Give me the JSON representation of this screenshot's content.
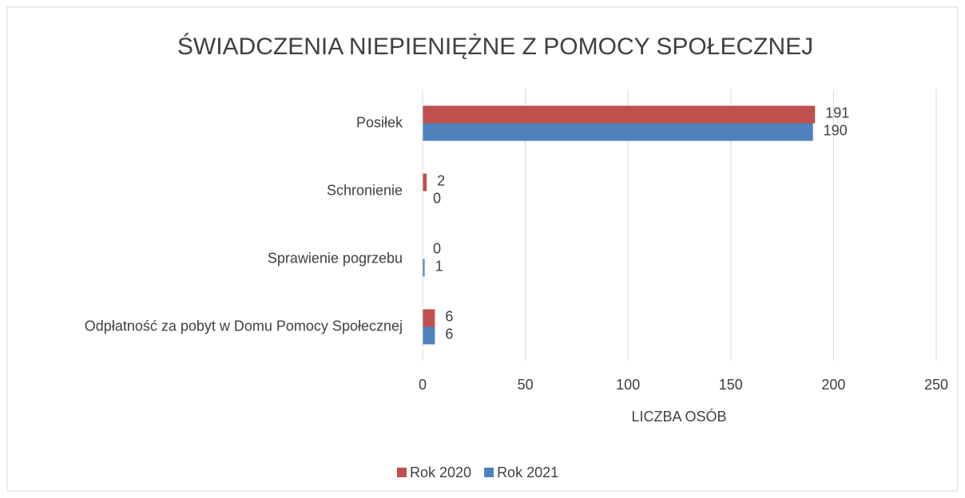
{
  "chart_data": {
    "type": "hbar",
    "title": "ŚWIADCZENIA NIEPIENIĘŻNE Z POMOCY SPOŁECZNEJ",
    "categories": [
      "Posiłek",
      "Schronienie",
      "Sprawienie pogrzebu",
      "Odpłatność za pobyt w Domu Pomocy Społecznej"
    ],
    "series": [
      {
        "name": "Rok 2020",
        "color": "#c0504d",
        "values": [
          191,
          2,
          0,
          6
        ]
      },
      {
        "name": "Rok 2021",
        "color": "#4f81bd",
        "values": [
          190,
          0,
          1,
          6
        ]
      }
    ],
    "xlabel": "LICZBA OSÓB",
    "xlim": [
      0,
      250
    ],
    "xticks": [
      0,
      50,
      100,
      150,
      200,
      250
    ],
    "grid": true,
    "legend": "bottom"
  }
}
